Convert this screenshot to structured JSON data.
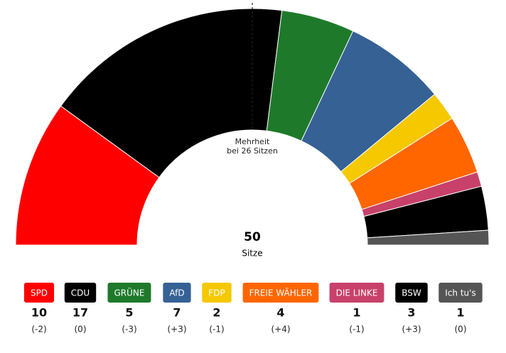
{
  "chart_data": {
    "type": "half-donut",
    "categories": [
      "SPD",
      "CDU",
      "GRÜNE",
      "AfD",
      "FDP",
      "FREIE WÄHLER",
      "DIE LINKE",
      "BSW",
      "Ich tu's"
    ],
    "values": [
      10,
      17,
      5,
      7,
      2,
      4,
      1,
      3,
      1
    ],
    "colors": [
      "#ff0000",
      "#000000",
      "#1e7a2a",
      "#356195",
      "#f5c800",
      "#ff6600",
      "#c8416a",
      "#000000",
      "#555555"
    ],
    "changes": [
      -2,
      0,
      -3,
      3,
      -1,
      4,
      -1,
      3,
      0
    ],
    "change_labels": [
      "(-2)",
      "(0)",
      "(-3)",
      "(+3)",
      "(-1)",
      "(+4)",
      "(-1)",
      "(+3)",
      "(0)"
    ],
    "total": 50,
    "total_label": "Sitze",
    "majority_label": [
      "Mehrheit",
      "bei 26 Sitzen"
    ]
  }
}
